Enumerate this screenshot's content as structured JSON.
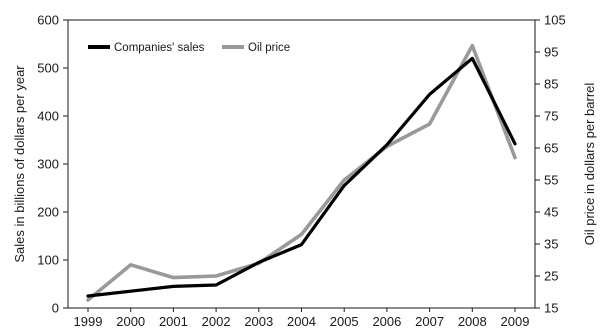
{
  "chart_data": {
    "type": "line",
    "title": "",
    "x": [
      "1999",
      "2000",
      "2001",
      "2002",
      "2003",
      "2004",
      "2005",
      "2006",
      "2007",
      "2008",
      "2009"
    ],
    "xlabel": "",
    "ylabel_left": "Sales in billions of dollars per year",
    "ylabel_right": "Oil price in dollars per barrel",
    "ylim_left": [
      0,
      600
    ],
    "ylim_right": [
      15,
      105
    ],
    "yticks_left": [
      "0",
      "100",
      "200",
      "300",
      "400",
      "500",
      "600"
    ],
    "yticks_right": [
      "15",
      "25",
      "35",
      "45",
      "55",
      "65",
      "75",
      "85",
      "95",
      "105"
    ],
    "grid": false,
    "legend_position": "top-left",
    "series": [
      {
        "name": "Companies' sales",
        "axis": "left",
        "color": "#000000",
        "values": [
          25,
          35,
          45,
          48,
          95,
          132,
          255,
          340,
          445,
          520,
          342
        ]
      },
      {
        "name": "Oil price",
        "axis": "right",
        "color": "#999999",
        "values": [
          17.5,
          28.5,
          24.5,
          25,
          29,
          38,
          55,
          65.5,
          72.5,
          97,
          62
        ]
      }
    ]
  }
}
